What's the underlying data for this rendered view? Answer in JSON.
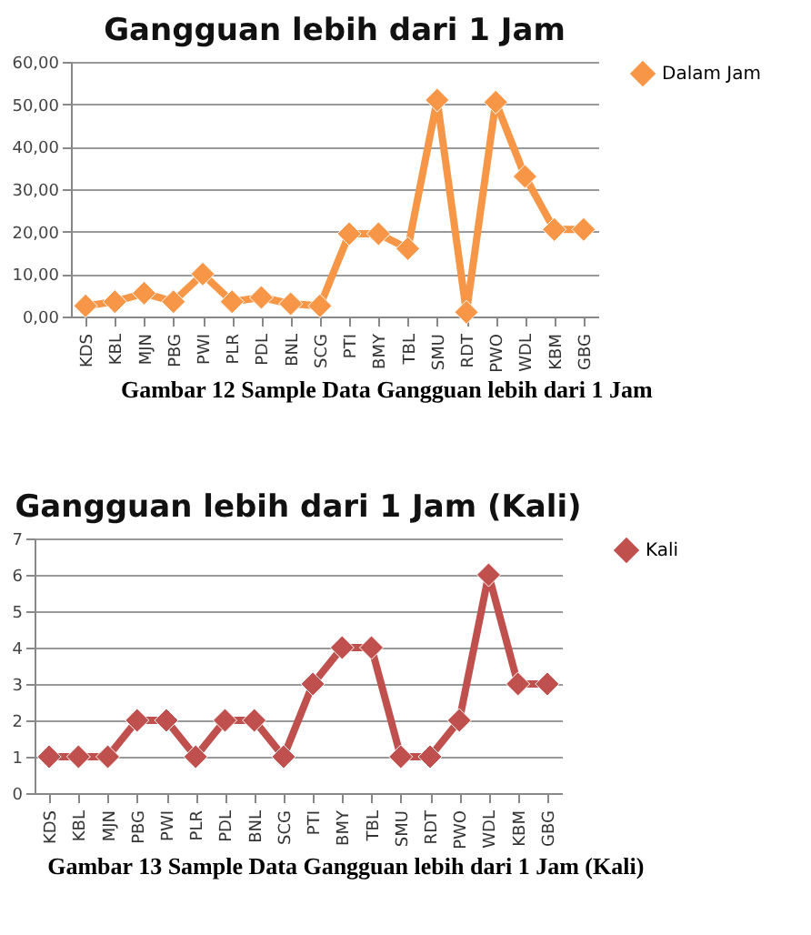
{
  "chart_data": [
    {
      "type": "line",
      "title": "Gangguan lebih dari 1 Jam",
      "categories": [
        "KDS",
        "KBL",
        "MJN",
        "PBG",
        "PWI",
        "PLR",
        "PDL",
        "BNL",
        "SCG",
        "PTI",
        "BMY",
        "TBL",
        "SMU",
        "RDT",
        "PWO",
        "WDL",
        "KBM",
        "GBG"
      ],
      "series": [
        {
          "name": "Dalam Jam",
          "color": "#f79646",
          "values": [
            2.5,
            3.5,
            5.5,
            3.5,
            10,
            3.5,
            4.5,
            3,
            2.5,
            19.5,
            19.5,
            16,
            51,
            1,
            50.5,
            33,
            20.5,
            20.5
          ]
        }
      ],
      "ylim": [
        0,
        60
      ],
      "yticks": [
        {
          "value": 0,
          "label": "0,00"
        },
        {
          "value": 10,
          "label": "10,00"
        },
        {
          "value": 20,
          "label": "20,00"
        },
        {
          "value": 30,
          "label": "30,00"
        },
        {
          "value": 40,
          "label": "40,00"
        },
        {
          "value": 50,
          "label": "50,00"
        },
        {
          "value": 60,
          "label": "60,00"
        }
      ],
      "grid": "y",
      "legend": "right",
      "marker": "diamond",
      "annotations": [
        "Gambar 12 Sample Data Gangguan lebih dari 1 Jam"
      ]
    },
    {
      "type": "line",
      "title": "Gangguan lebih dari 1 Jam (Kali)",
      "categories": [
        "KDS",
        "KBL",
        "MJN",
        "PBG",
        "PWI",
        "PLR",
        "PDL",
        "BNL",
        "SCG",
        "PTI",
        "BMY",
        "TBL",
        "SMU",
        "RDT",
        "PWO",
        "WDL",
        "KBM",
        "GBG"
      ],
      "series": [
        {
          "name": "Kali",
          "color": "#c0504d",
          "values": [
            1,
            1,
            1,
            2,
            2,
            1,
            2,
            2,
            1,
            3,
            4,
            4,
            1,
            1,
            2,
            6,
            3,
            3
          ]
        }
      ],
      "ylim": [
        0,
        7
      ],
      "yticks": [
        0,
        1,
        2,
        3,
        4,
        5,
        6,
        7
      ],
      "grid": "y",
      "legend": "right",
      "marker": "diamond",
      "annotations": [
        "Gambar 13 Sample Data Gangguan lebih dari 1 Jam (Kali)"
      ]
    }
  ]
}
